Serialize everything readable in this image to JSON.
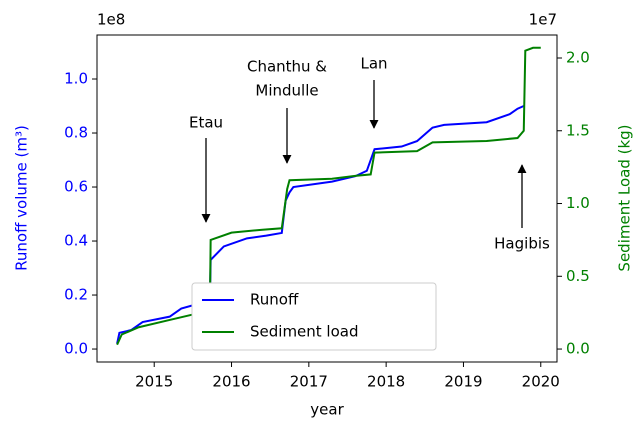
{
  "chart_data": {
    "type": "line",
    "xlabel": "year",
    "ylabel": "Runoff volume (m³)",
    "y2label": "Sediment Load (kg)",
    "y_offset_label": "1e8",
    "y2_offset_label": "1e7",
    "xlim": [
      2014.26,
      2020.21
    ],
    "xticks": [
      2015,
      2016,
      2017,
      2018,
      2019,
      2020
    ],
    "ylim": [
      -0.048,
      1.163
    ],
    "yticks": [
      {
        "value": 0,
        "label": "0.0"
      },
      0.2,
      0.4,
      0.6,
      0.8,
      {
        "value": 1,
        "label": "1.0"
      }
    ],
    "y2lim": [
      -0.089,
      2.158
    ],
    "y2ticks": [
      {
        "value": 0,
        "label": "0.0"
      },
      0.5,
      {
        "value": 1,
        "label": "1.0"
      },
      1.5,
      {
        "value": 2,
        "label": "2.0"
      }
    ],
    "legend": "lower center",
    "series": [
      {
        "name": "Runoff",
        "color": "#0000ff",
        "axis": "y",
        "x": [
          2014.52,
          2014.55,
          2014.7,
          2014.85,
          2015.2,
          2015.35,
          2015.6,
          2015.72,
          2015.73,
          2015.9,
          2016.2,
          2016.45,
          2016.65,
          2016.7,
          2016.75,
          2016.8,
          2017.3,
          2017.6,
          2017.75,
          2017.85,
          2018.2,
          2018.4,
          2018.6,
          2018.75,
          2019.3,
          2019.6,
          2019.7,
          2019.78
        ],
        "values": [
          0.02,
          0.06,
          0.07,
          0.1,
          0.12,
          0.15,
          0.17,
          0.175,
          0.33,
          0.38,
          0.41,
          0.42,
          0.43,
          0.55,
          0.58,
          0.6,
          0.62,
          0.64,
          0.66,
          0.74,
          0.75,
          0.77,
          0.82,
          0.83,
          0.84,
          0.87,
          0.89,
          0.9
        ]
      },
      {
        "name": "Sediment load",
        "color": "#008000",
        "axis": "y2",
        "x": [
          2014.52,
          2014.58,
          2014.8,
          2015.2,
          2015.6,
          2015.72,
          2015.73,
          2016.0,
          2016.4,
          2016.65,
          2016.72,
          2016.75,
          2017.3,
          2017.6,
          2017.8,
          2017.85,
          2018.4,
          2018.6,
          2019.3,
          2019.7,
          2019.78,
          2019.8,
          2019.9,
          2020.0
        ],
        "values": [
          0.03,
          0.1,
          0.15,
          0.2,
          0.25,
          0.27,
          0.75,
          0.8,
          0.82,
          0.83,
          1.1,
          1.16,
          1.17,
          1.19,
          1.2,
          1.35,
          1.36,
          1.42,
          1.43,
          1.45,
          1.5,
          2.05,
          2.07,
          2.07
        ]
      }
    ],
    "annotations": [
      {
        "lines": [
          "Etau"
        ]
      },
      {
        "lines": [
          "Chanthu &",
          "Mindulle"
        ]
      },
      {
        "lines": [
          "Lan"
        ]
      },
      {
        "lines": [
          "Hagibis"
        ]
      }
    ]
  }
}
